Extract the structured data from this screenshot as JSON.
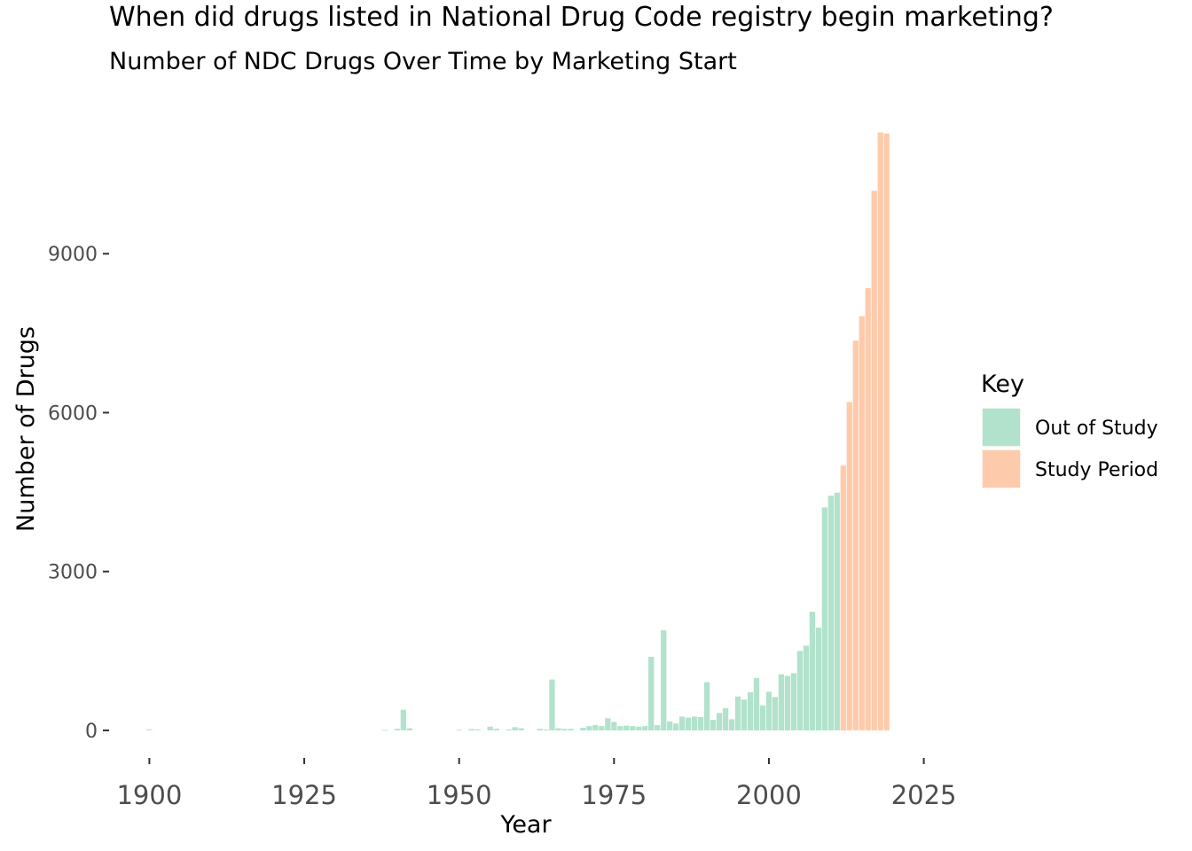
{
  "chart_data": {
    "type": "bar",
    "title": "When did drugs listed in National Drug Code registry begin marketing?",
    "subtitle": "Number of NDC Drugs Over Time by Marketing Start",
    "xlabel": "Year",
    "ylabel": "Number of Drugs",
    "xlim": [
      1893.5,
      2031.5
    ],
    "ylim": [
      -520,
      11950
    ],
    "x_ticks": [
      1900,
      1925,
      1950,
      1975,
      2000,
      2025
    ],
    "y_ticks": [
      0,
      3000,
      6000,
      9000
    ],
    "grid": false,
    "legend": {
      "title": "Key",
      "placement": "right",
      "entries": [
        {
          "label": "Out of Study",
          "color": "#b2e2cc"
        },
        {
          "label": "Study Period",
          "color": "#fdcbab"
        }
      ]
    },
    "series": [
      {
        "key": "out_of_study",
        "color": "#b2e2cc",
        "points": [
          [
            1900,
            20
          ],
          [
            1938,
            10
          ],
          [
            1940,
            30
          ],
          [
            1941,
            390
          ],
          [
            1942,
            40
          ],
          [
            1950,
            10
          ],
          [
            1952,
            25
          ],
          [
            1953,
            20
          ],
          [
            1955,
            70
          ],
          [
            1956,
            30
          ],
          [
            1958,
            20
          ],
          [
            1959,
            60
          ],
          [
            1960,
            40
          ],
          [
            1963,
            30
          ],
          [
            1964,
            20
          ],
          [
            1965,
            960
          ],
          [
            1966,
            40
          ],
          [
            1967,
            30
          ],
          [
            1968,
            30
          ],
          [
            1970,
            50
          ],
          [
            1971,
            80
          ],
          [
            1972,
            100
          ],
          [
            1973,
            80
          ],
          [
            1974,
            230
          ],
          [
            1975,
            160
          ],
          [
            1976,
            80
          ],
          [
            1977,
            90
          ],
          [
            1978,
            80
          ],
          [
            1979,
            70
          ],
          [
            1980,
            80
          ],
          [
            1981,
            1390
          ],
          [
            1982,
            100
          ],
          [
            1983,
            1890
          ],
          [
            1984,
            170
          ],
          [
            1985,
            130
          ],
          [
            1986,
            260
          ],
          [
            1987,
            240
          ],
          [
            1988,
            260
          ],
          [
            1989,
            250
          ],
          [
            1990,
            910
          ],
          [
            1991,
            200
          ],
          [
            1992,
            330
          ],
          [
            1993,
            420
          ],
          [
            1994,
            210
          ],
          [
            1995,
            640
          ],
          [
            1996,
            580
          ],
          [
            1997,
            720
          ],
          [
            1998,
            990
          ],
          [
            1999,
            470
          ],
          [
            2000,
            730
          ],
          [
            2001,
            630
          ],
          [
            2002,
            1060
          ],
          [
            2003,
            1030
          ],
          [
            2004,
            1080
          ],
          [
            2005,
            1500
          ],
          [
            2006,
            1600
          ],
          [
            2007,
            2240
          ],
          [
            2008,
            1940
          ],
          [
            2009,
            4210
          ],
          [
            2010,
            4430
          ],
          [
            2011,
            4490
          ]
        ]
      },
      {
        "key": "study_period",
        "color": "#fdcbab",
        "points": [
          [
            2012,
            5000
          ],
          [
            2013,
            6200
          ],
          [
            2014,
            7360
          ],
          [
            2015,
            7820
          ],
          [
            2016,
            8350
          ],
          [
            2017,
            10190
          ],
          [
            2018,
            11290
          ],
          [
            2019,
            11270
          ]
        ]
      }
    ]
  }
}
